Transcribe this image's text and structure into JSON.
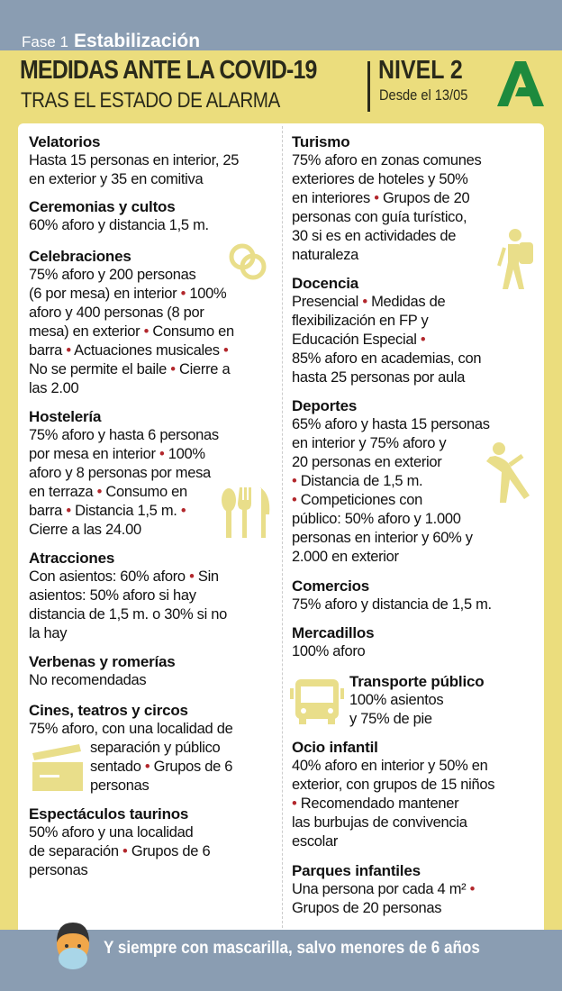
{
  "header": {
    "phase_label": "Fase 1",
    "phase_name": "Estabilización",
    "title": "MEDIDAS ANTE LA COVID-19",
    "subtitle": "TRAS EL ESTADO DE ALARMA",
    "level": "NIVEL 2",
    "since": "Desde el 13/05",
    "logo": "junta-de-andalucia-logo"
  },
  "colors": {
    "background": "#8a9db2",
    "band": "#ebdd7d",
    "bullet": "#b2272c",
    "icon": "#e9de8a",
    "logo": "#1d8a3d"
  },
  "left": [
    {
      "title": "Velatorios",
      "lines": [
        "Hasta 15 personas en interior, 25",
        "en exterior y 35 en comitiva"
      ]
    },
    {
      "title": "Ceremonias y cultos",
      "lines": [
        "60% aforo y distancia 1,5 m."
      ]
    },
    {
      "title": "Celebraciones",
      "icon": "wedding-rings-icon",
      "lines": [
        "75% aforo y 200 personas",
        "(6 por mesa) en interior • 100%",
        "aforo y 400 personas (8 por",
        "mesa) en exterior • Consumo en",
        "barra • Actuaciones musicales •",
        "No se permite el baile • Cierre a",
        "las 2.00"
      ]
    },
    {
      "title": "Hostelería",
      "icon": "cutlery-icon",
      "lines": [
        "75% aforo y hasta 6 personas",
        "por mesa en interior • 100%",
        "aforo y 8 personas por mesa",
        "en terraza • Consumo en",
        "barra • Distancia 1,5 m. •",
        "Cierre a las 24.00"
      ]
    },
    {
      "title": "Atracciones",
      "lines": [
        "Con asientos: 60% aforo • Sin",
        "asientos: 50% aforo si hay",
        "distancia de 1,5 m. o 30% si no",
        "la hay"
      ]
    },
    {
      "title": "Verbenas y romerías",
      "lines": [
        "No recomendadas"
      ]
    },
    {
      "title": "Cines, teatros y circos",
      "icon": "clapperboard-icon",
      "lines": [
        "75% aforo, con una localidad de",
        "separación y público",
        "sentado • Grupos de 6",
        "personas"
      ]
    },
    {
      "title": "Espectáculos taurinos",
      "lines": [
        "50% aforo y una localidad",
        "de separación • Grupos de 6",
        "personas"
      ]
    }
  ],
  "right": [
    {
      "title": "Turismo",
      "icon": "hiker-icon",
      "lines": [
        "75% aforo en zonas comunes",
        "exteriores de hoteles y 50%",
        "en interiores • Grupos de 20",
        "personas con guía turístico,",
        "30 si es en actividades de",
        "naturaleza"
      ]
    },
    {
      "title": "Docencia",
      "lines": [
        "Presencial • Medidas de",
        "flexibilización en FP y",
        "Educación Especial •",
        "85% aforo en academias, con",
        "hasta 25 personas por aula"
      ]
    },
    {
      "title": "Deportes",
      "icon": "exercise-icon",
      "lines": [
        "65% aforo y hasta 15 personas",
        "en interior y 75% aforo y",
        "20 personas en exterior",
        "• Distancia de 1,5 m.",
        "• Competiciones con",
        "público: 50% aforo y 1.000",
        "personas en interior y 60% y",
        "2.000 en exterior"
      ]
    },
    {
      "title": "Comercios",
      "lines": [
        "75% aforo y distancia de 1,5 m."
      ]
    },
    {
      "title": "Mercadillos",
      "lines": [
        "100% aforo"
      ]
    },
    {
      "title": "Transporte público",
      "icon": "bus-icon",
      "lines": [
        "100% asientos",
        "y 75% de pie"
      ]
    },
    {
      "title": "Ocio infantil",
      "lines": [
        "40% aforo en interior y 50% en",
        "exterior, con grupos de 15 niños",
        "• Recomendado mantener",
        "las burbujas de convivencia",
        "escolar"
      ]
    },
    {
      "title": "Parques infantiles",
      "lines": [
        "Una persona por cada 4 m² •",
        "Grupos de 20 personas"
      ]
    }
  ],
  "footer": {
    "text": "Y siempre con mascarilla, salvo menores de 6 años",
    "icon": "child-with-mask-icon"
  }
}
